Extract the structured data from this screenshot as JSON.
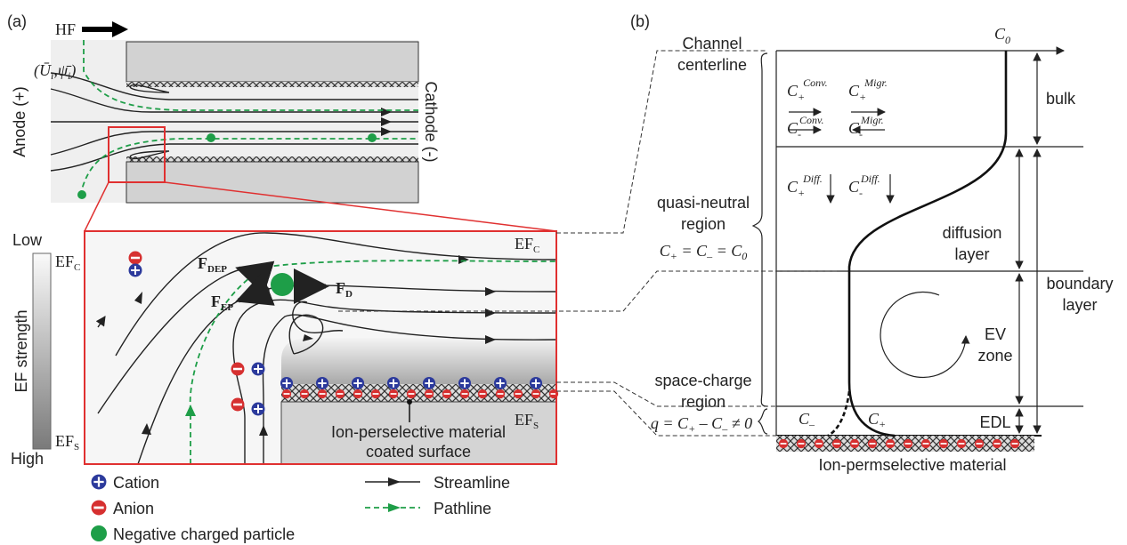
{
  "panel_a": {
    "label": "(a)",
    "flow": "HF",
    "mean_field": [
      "(Ū",
      "i",
      ",ψ̄",
      "i",
      ")"
    ],
    "anode": "Anode (+)",
    "cathode": "Cathode (-)",
    "colorbar": {
      "low": "Low",
      "high": "High",
      "title": "EF strength",
      "ef_c": {
        "main": "EF",
        "sub": "C"
      },
      "ef_s": {
        "main": "EF",
        "sub": "S"
      }
    },
    "zoom": {
      "ef_c": {
        "main": "EF",
        "sub": "C"
      },
      "ef_s": {
        "main": "EF",
        "sub": "S"
      },
      "f_dep": {
        "main": "F",
        "sub": "DEP"
      },
      "f_ep": {
        "main": "F",
        "sub": "EP"
      },
      "f_d": {
        "main": "F",
        "sub": "D"
      },
      "surface": [
        "Ion-perselective material",
        "coated surface"
      ]
    },
    "legend": {
      "cation": "Cation",
      "anion": "Anion",
      "particle": "Negative charged particle",
      "streamline": "Streamline",
      "pathline": "Pathline"
    }
  },
  "panel_b": {
    "label": "(b)",
    "c0": {
      "main": "C",
      "sub": "0"
    },
    "centerline": [
      "Channel",
      "centerline"
    ],
    "bulk": "bulk",
    "c_plus_conv": {
      "main": "C",
      "sub": "+",
      "sup": "Conv."
    },
    "c_plus_migr": {
      "main": "C",
      "sub": "+",
      "sup": "Migr."
    },
    "c_minus_conv": {
      "main": "C",
      "sub": "-",
      "sup": "Conv."
    },
    "c_minus_migr": {
      "main": "C",
      "sub": "-",
      "sup": "Migr."
    },
    "c_plus_diff": {
      "main": "C",
      "sub": "+",
      "sup": "Diff."
    },
    "c_minus_diff": {
      "main": "C",
      "sub": "-",
      "sup": "Diff."
    },
    "quasi_neutral": [
      "quasi-neutral",
      "region"
    ],
    "equality": [
      "C",
      "+",
      " = C",
      "–",
      " = C",
      "0"
    ],
    "diffusion_layer": [
      "diffusion",
      "layer"
    ],
    "boundary_layer": [
      "boundary",
      "layer"
    ],
    "ev_zone": [
      "EV",
      "zone"
    ],
    "space_charge": [
      "space-charge",
      "region"
    ],
    "charge": [
      "q = C",
      "+",
      " – C",
      "–",
      " ≠ 0"
    ],
    "c_minus": {
      "main": "C",
      "sub": "–"
    },
    "c_plus": {
      "main": "C",
      "sub": "+"
    },
    "edl": "EDL",
    "material": "Ion-permselective material"
  }
}
